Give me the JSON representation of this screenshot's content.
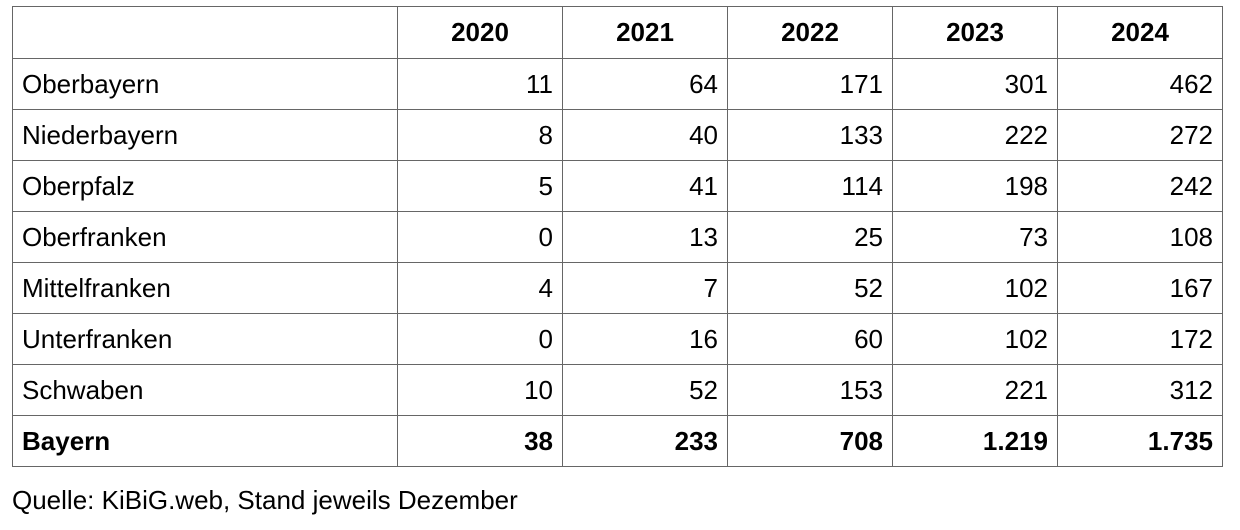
{
  "table": {
    "columns": [
      "2020",
      "2021",
      "2022",
      "2023",
      "2024"
    ],
    "rows": [
      [
        "Oberbayern",
        11,
        64,
        171,
        301,
        462
      ],
      [
        "Niederbayern",
        8,
        40,
        133,
        222,
        272
      ],
      [
        "Oberpfalz",
        5,
        41,
        114,
        198,
        242
      ],
      [
        "Oberfranken",
        0,
        13,
        25,
        73,
        108
      ],
      [
        "Mittelfranken",
        4,
        7,
        52,
        102,
        167
      ],
      [
        "Unterfranken",
        0,
        16,
        60,
        102,
        172
      ],
      [
        "Schwaben",
        10,
        52,
        153,
        221,
        312
      ],
      [
        "Bayern",
        38,
        233,
        708,
        "1.219",
        "1.735"
      ]
    ]
  },
  "source": "Quelle: KiBiG.web, Stand jeweils Dezember"
}
